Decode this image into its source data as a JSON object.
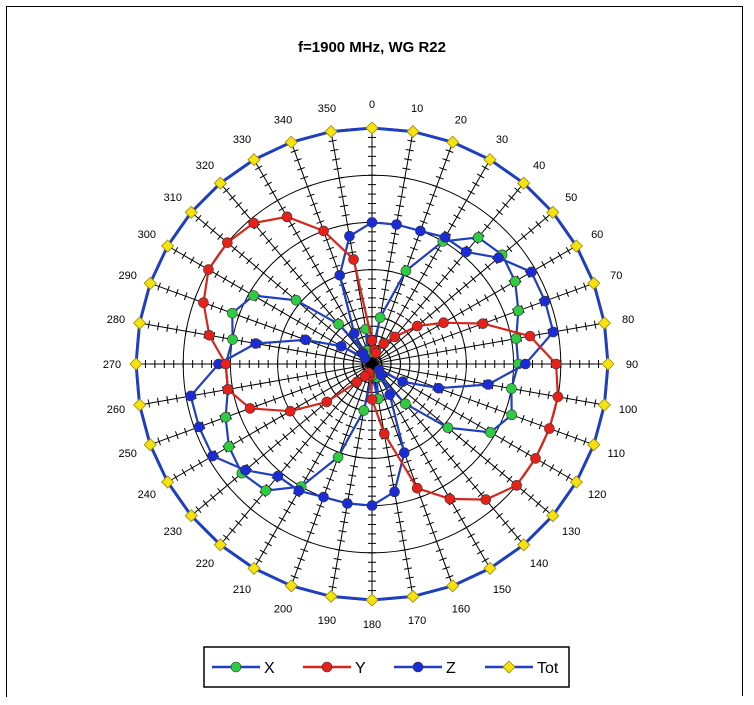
{
  "chart_data": {
    "type": "polar-line",
    "title": "f=1900 MHz, WG R22",
    "angle_ticks": [
      0,
      10,
      20,
      30,
      40,
      50,
      60,
      70,
      80,
      90,
      100,
      110,
      120,
      130,
      140,
      150,
      160,
      170,
      180,
      190,
      200,
      210,
      220,
      230,
      240,
      250,
      260,
      270,
      280,
      290,
      300,
      310,
      320,
      330,
      340,
      350
    ],
    "radial_range": [
      0,
      1
    ],
    "radial_gridlines": [
      0.2,
      0.4,
      0.6,
      0.8,
      1.0
    ],
    "grid": true,
    "legend_position": "bottom",
    "series": [
      {
        "name": "X",
        "line_color": "#1f3fbf",
        "marker_color": "#2ecc40",
        "angles": [
          0,
          10,
          20,
          30,
          40,
          50,
          60,
          70,
          80,
          90,
          100,
          110,
          120,
          130,
          140,
          150,
          160,
          170,
          180,
          190,
          200,
          210,
          220,
          230,
          240,
          250,
          260,
          270,
          280,
          290,
          300,
          310,
          320,
          330,
          340,
          350
        ],
        "values": [
          0.05,
          0.2,
          0.42,
          0.6,
          0.7,
          0.72,
          0.7,
          0.66,
          0.62,
          0.62,
          0.6,
          0.63,
          0.58,
          0.42,
          0.22,
          0.06,
          0.06,
          0.15,
          0.05,
          0.2,
          0.42,
          0.6,
          0.7,
          0.72,
          0.7,
          0.66,
          0.62,
          0.62,
          0.6,
          0.63,
          0.58,
          0.42,
          0.22,
          0.06,
          0.06,
          0.15
        ]
      },
      {
        "name": "Y",
        "line_color": "#d8261c",
        "marker_color": "#e8201a",
        "angles": [
          0,
          10,
          20,
          30,
          40,
          50,
          60,
          70,
          80,
          90,
          100,
          110,
          120,
          130,
          140,
          150,
          160,
          170,
          180,
          190,
          200,
          210,
          220,
          230,
          240,
          250,
          260,
          270,
          280,
          290,
          300,
          310,
          320,
          330,
          340,
          350
        ],
        "values": [
          0.1,
          0.06,
          0.05,
          0.1,
          0.15,
          0.25,
          0.35,
          0.5,
          0.68,
          0.78,
          0.8,
          0.8,
          0.8,
          0.8,
          0.75,
          0.66,
          0.56,
          0.3,
          0.15,
          0.05,
          0.04,
          0.06,
          0.1,
          0.25,
          0.4,
          0.55,
          0.62,
          0.62,
          0.7,
          0.76,
          0.8,
          0.8,
          0.78,
          0.72,
          0.6,
          0.45
        ]
      },
      {
        "name": "Z",
        "line_color": "#1f3fbf",
        "marker_color": "#1a2bd8",
        "angles": [
          0,
          10,
          20,
          30,
          40,
          50,
          60,
          70,
          80,
          90,
          100,
          110,
          120,
          130,
          140,
          150,
          160,
          170,
          180,
          190,
          200,
          210,
          220,
          230,
          240,
          250,
          260,
          270,
          280,
          290,
          300,
          310,
          320,
          330,
          340,
          350
        ],
        "values": [
          0.6,
          0.6,
          0.6,
          0.62,
          0.62,
          0.7,
          0.78,
          0.78,
          0.78,
          0.65,
          0.5,
          0.3,
          0.15,
          0.04,
          0.06,
          0.15,
          0.4,
          0.55,
          0.6,
          0.6,
          0.6,
          0.62,
          0.62,
          0.7,
          0.78,
          0.78,
          0.78,
          0.65,
          0.5,
          0.3,
          0.15,
          0.04,
          0.06,
          0.15,
          0.4,
          0.55
        ]
      },
      {
        "name": "Tot",
        "line_color": "#1f3fbf",
        "marker_color": "#f5e20f",
        "angles": [
          0,
          10,
          20,
          30,
          40,
          50,
          60,
          70,
          80,
          90,
          100,
          110,
          120,
          130,
          140,
          150,
          160,
          170,
          180,
          190,
          200,
          210,
          220,
          230,
          240,
          250,
          260,
          270,
          280,
          290,
          300,
          310,
          320,
          330,
          340,
          350
        ],
        "values": [
          1,
          1,
          1,
          1,
          1,
          1,
          1,
          1,
          1,
          1,
          1,
          1,
          1,
          1,
          1,
          1,
          1,
          1,
          1,
          1,
          1,
          1,
          1,
          1,
          1,
          1,
          1,
          1,
          1,
          1,
          1,
          1,
          1,
          1,
          1,
          1
        ]
      }
    ]
  }
}
